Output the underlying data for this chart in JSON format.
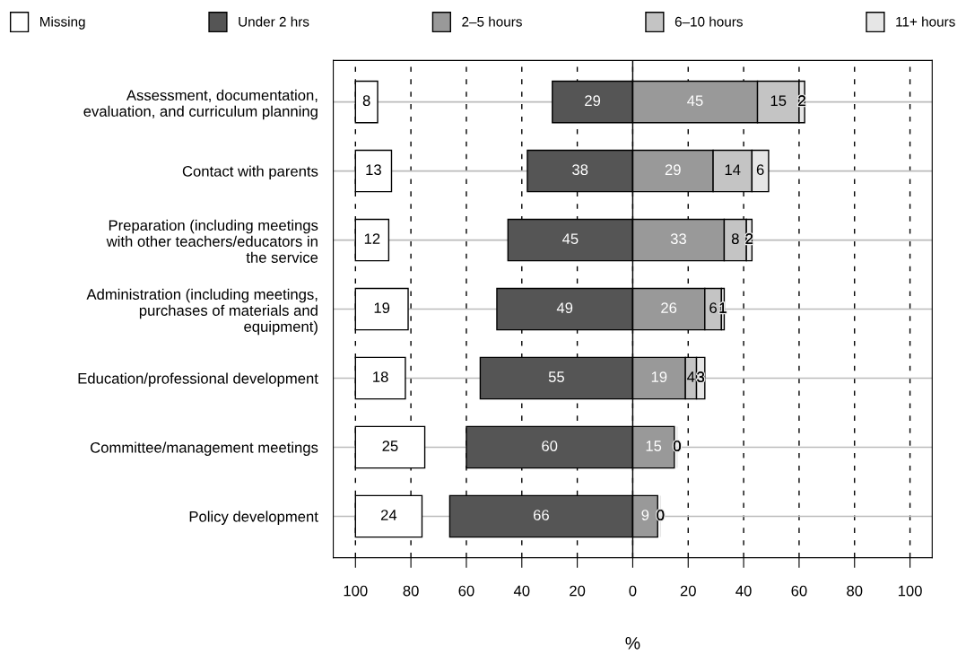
{
  "chart_data": {
    "type": "bar",
    "orientation": "horizontal",
    "xlabel": "%",
    "categories": [
      "Assessment, documentation,\nevaluation, and curriculum planning",
      "Contact with parents",
      "Preparation (including meetings\nwith other teachers/educators in\nthe service",
      "Administration (including meetings,\npurchases of materials and\nequipment)",
      "Education/professional development",
      "Committee/management meetings",
      "Policy development"
    ],
    "series": [
      {
        "name": "Missing",
        "color": "#ffffff",
        "base": [
          -100,
          -100,
          -100,
          -100,
          -100,
          -100,
          -100
        ],
        "values": [
          8,
          13,
          12,
          19,
          18,
          25,
          24
        ],
        "value_labels": [
          "8",
          "13",
          "12",
          "19",
          "18",
          "25",
          "24"
        ]
      },
      {
        "name": "Under 2 hrs",
        "color": "#555555",
        "base": [
          -29,
          -38,
          -45,
          -49,
          -55,
          -60,
          -66
        ],
        "values": [
          29,
          38,
          45,
          49,
          55,
          60,
          66
        ],
        "value_labels": [
          "29",
          "38",
          "45",
          "49",
          "55",
          "60",
          "66"
        ]
      },
      {
        "name": "2–5 hours",
        "color": "#999999",
        "base": [
          0,
          0,
          0,
          0,
          0,
          0,
          0
        ],
        "values": [
          45,
          29,
          33,
          26,
          19,
          15,
          9
        ],
        "value_labels": [
          "45",
          "29",
          "33",
          "26",
          "19",
          "15",
          "9"
        ]
      },
      {
        "name": "6–10 hours",
        "color": "#c4c4c4",
        "base": [
          45,
          29,
          33,
          26,
          19,
          null,
          null
        ],
        "values": [
          15,
          14,
          8,
          6,
          4,
          null,
          null
        ],
        "value_labels": [
          "15",
          "14",
          "8",
          "6",
          "4",
          null,
          null
        ]
      },
      {
        "name": "11+ hours",
        "color": "#e6e6e6",
        "base": [
          60,
          43,
          41,
          32,
          23,
          16,
          10
        ],
        "values": [
          2,
          6,
          2,
          1,
          3,
          0,
          0
        ],
        "value_labels": [
          "2",
          "6",
          "2",
          "1",
          "3",
          "0",
          "0"
        ]
      }
    ],
    "xlim": [
      -108,
      108
    ],
    "xticks": [
      {
        "value": -100,
        "label": "100"
      },
      {
        "value": -80,
        "label": "80"
      },
      {
        "value": -60,
        "label": "60"
      },
      {
        "value": -40,
        "label": "40"
      },
      {
        "value": -20,
        "label": "20"
      },
      0,
      20,
      40,
      60,
      80,
      100
    ],
    "ref_lines": [
      {
        "axis": "x",
        "value": 0,
        "label": null,
        "color": "#000000",
        "line_style": "solid"
      }
    ],
    "grid": true,
    "legend": "top"
  }
}
